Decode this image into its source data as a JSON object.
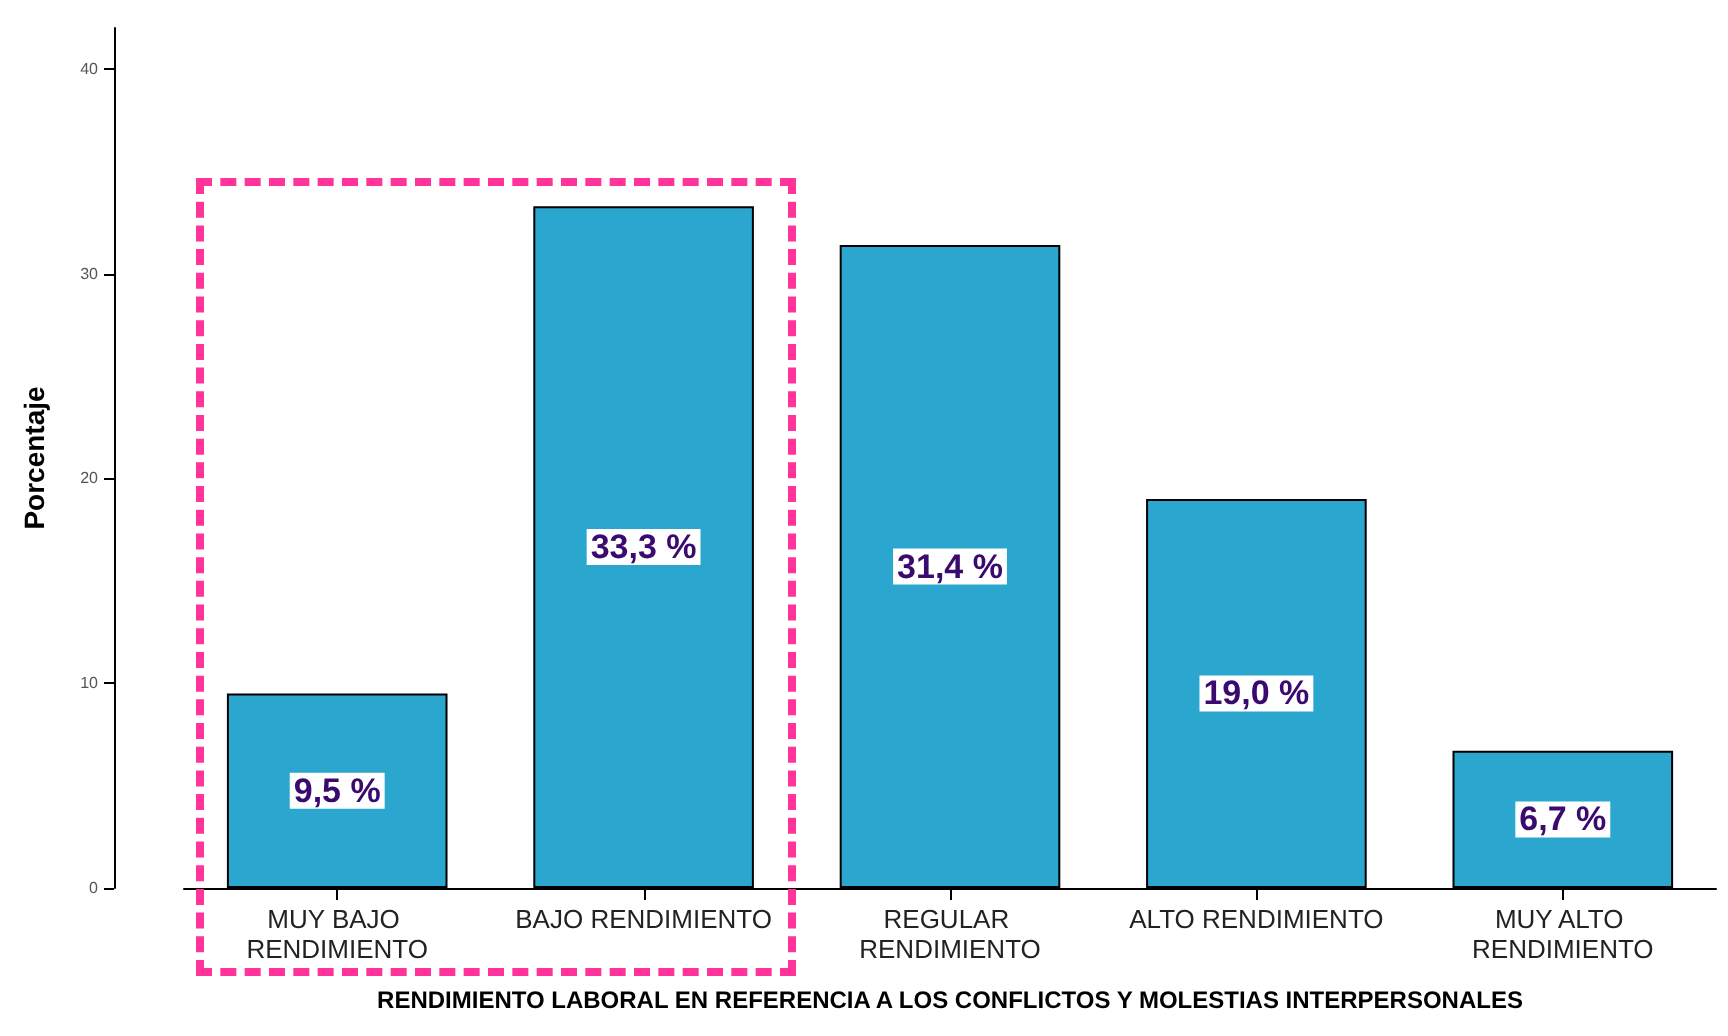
{
  "chart_data": {
    "type": "bar",
    "xlabel": "RENDIMIENTO LABORAL EN REFERENCIA A LOS CONFLICTOS Y MOLESTIAS INTERPERSONALES",
    "ylabel": "Porcentaje",
    "categories": [
      "MUY BAJO RENDIMIENTO",
      "BAJO RENDIMIENTO",
      "REGULAR RENDIMIENTO",
      "ALTO RENDIMIENTO",
      "MUY ALTO RENDIMIENTO"
    ],
    "values": [
      9.5,
      33.3,
      31.4,
      19.0,
      6.7
    ],
    "value_labels": [
      "9,5 %",
      "33,3 %",
      "31,4 %",
      "19,0 %",
      "6,7 %"
    ],
    "color": "#2ba6cf",
    "ylim": [
      0,
      42
    ],
    "yticks": [
      0,
      10,
      20,
      30,
      40
    ]
  }
}
